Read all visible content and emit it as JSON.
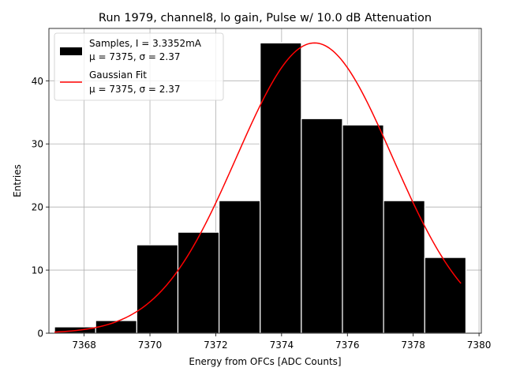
{
  "chart_data": {
    "type": "bar",
    "title": "Run 1979, channel8, lo gain, Pulse w/ 10.0 dB Attenuation",
    "xlabel": "Energy from OFCs [ADC Counts]",
    "ylabel": "Entries",
    "xlim": [
      7366.93,
      7380.07
    ],
    "ylim": [
      0,
      48.3
    ],
    "xticks": [
      7368,
      7370,
      7372,
      7374,
      7376,
      7378,
      7380
    ],
    "yticks": [
      0,
      10,
      20,
      30,
      40
    ],
    "grid": true,
    "legend_position": "top-left",
    "bar_color": "#000000",
    "fit_color": "#ff0000",
    "histogram": {
      "name": "Samples, I = 3.3352mA",
      "stats": "μ = 7375, σ = 2.37",
      "bin_edges": [
        7367.1,
        7368.35,
        7369.6,
        7370.85,
        7372.1,
        7373.35,
        7374.6,
        7375.85,
        7377.1,
        7378.35,
        7379.6
      ],
      "counts": [
        1,
        2,
        14,
        16,
        21,
        46,
        34,
        33,
        21,
        12
      ]
    },
    "fit": {
      "name": "Gaussian Fit",
      "stats": "μ = 7375, σ = 2.37",
      "mu": 7375.0,
      "sigma": 2.37,
      "amplitude": 46,
      "x_range": [
        7367.1,
        7379.45
      ]
    }
  }
}
